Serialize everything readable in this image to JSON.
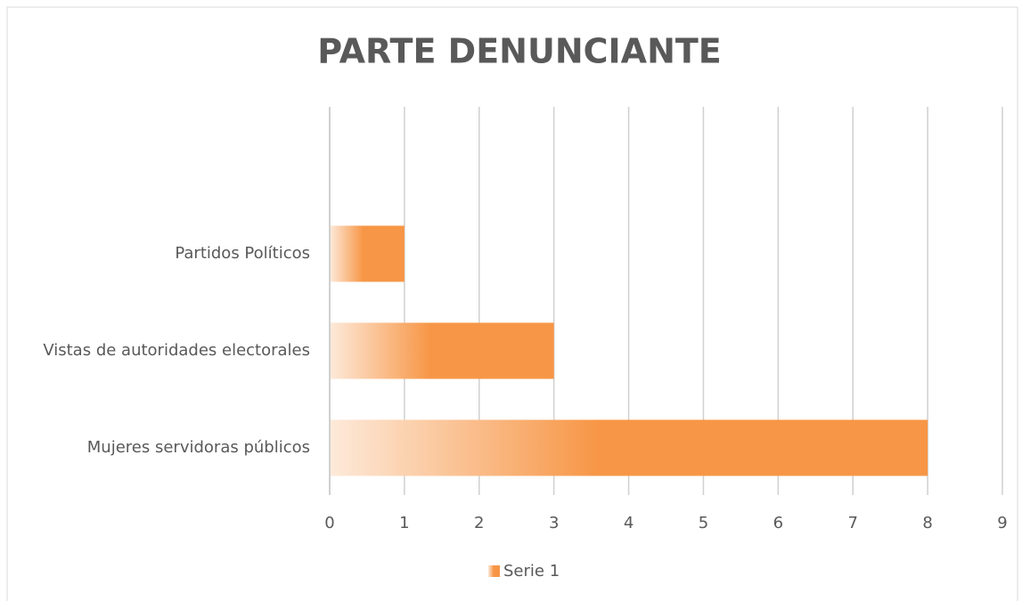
{
  "chart_data": {
    "type": "bar",
    "orientation": "horizontal",
    "title": "PARTE DENUNCIANTE",
    "categories": [
      "Partidos Políticos",
      "Vistas de autoridades electorales",
      "Mujeres servidoras públicos"
    ],
    "series": [
      {
        "name": "Serie 1",
        "color": "#f79646",
        "values": [
          1,
          3,
          8
        ]
      }
    ],
    "xlim": [
      0,
      9
    ],
    "xticks": [
      0,
      1,
      2,
      3,
      4,
      5,
      6,
      7,
      8,
      9
    ],
    "grid": true,
    "legend": "bottom"
  }
}
